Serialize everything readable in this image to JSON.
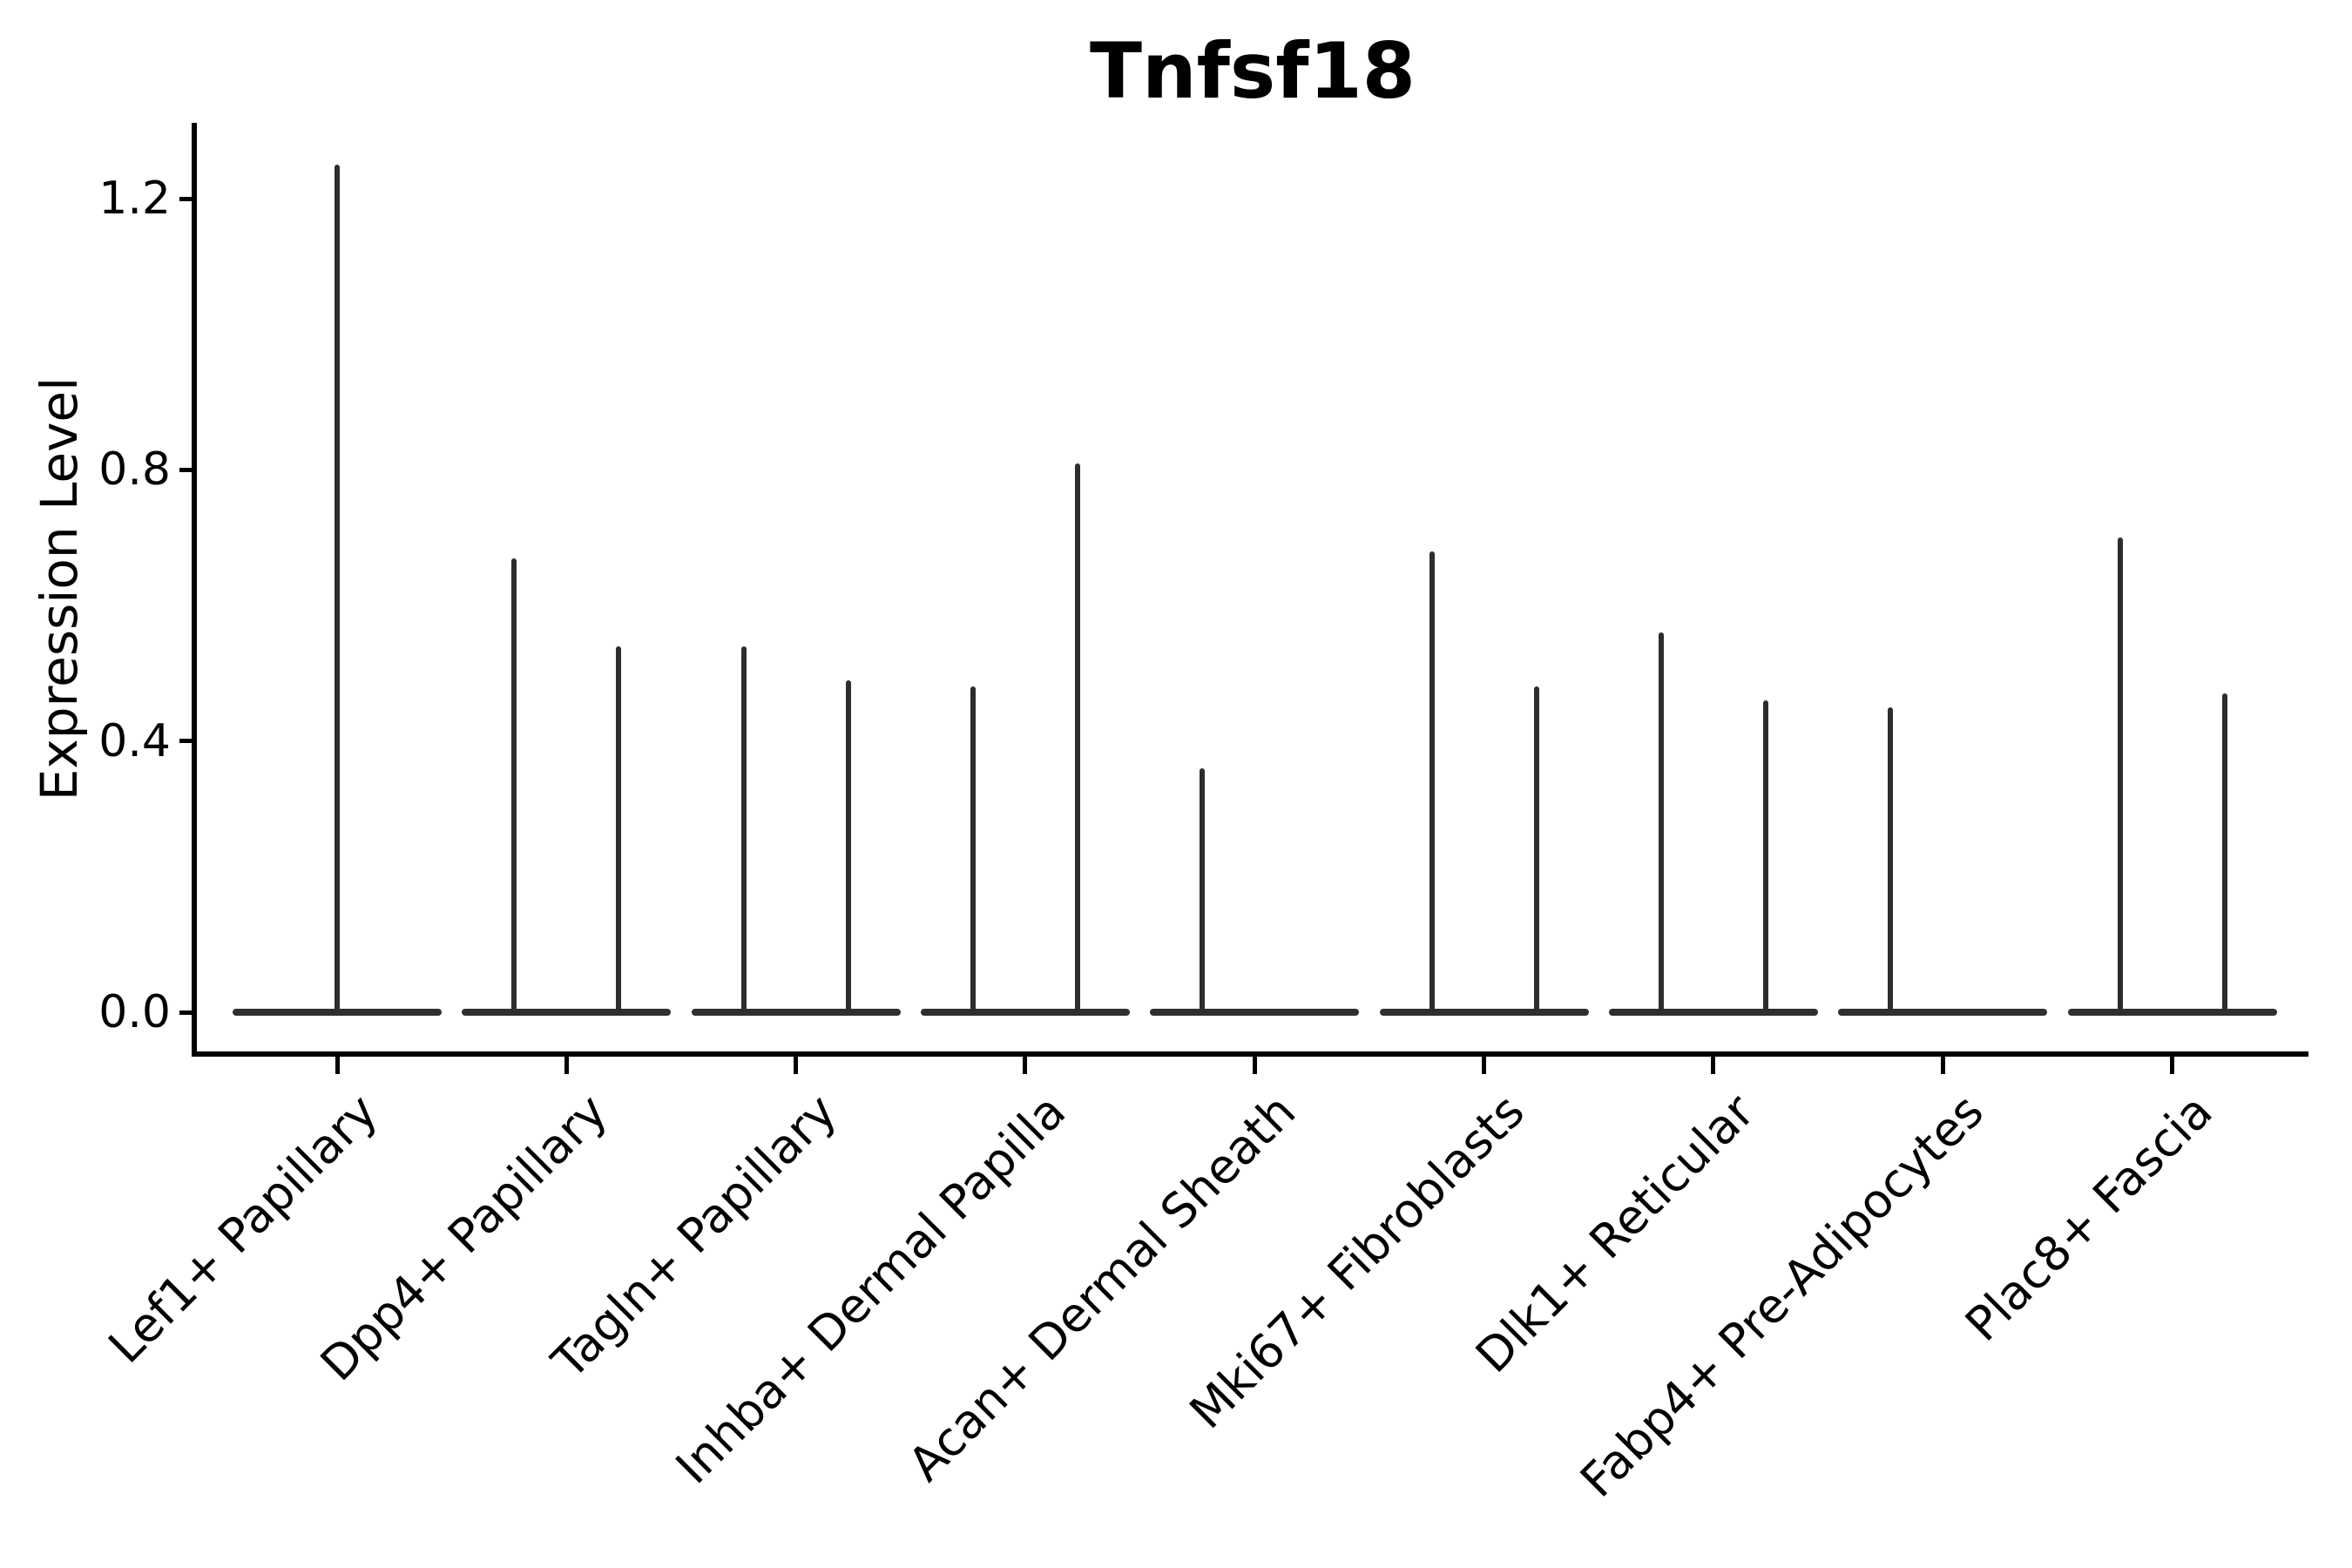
{
  "colors": {
    "background": "#ffffff",
    "violin_outline": "#2d2d2d",
    "axis": "#000000",
    "text": "#000000"
  },
  "chart_data": {
    "type": "violin",
    "title": "Tnfsf18",
    "xlabel": "",
    "ylabel": "Expression Level",
    "ylim": [
      -0.06,
      1.31
    ],
    "grid": false,
    "legend": false,
    "spines": "left and bottom only",
    "x_tick_rotation_deg": 45,
    "yticks": [
      {
        "label": "0.0",
        "value": 0.0
      },
      {
        "label": "0.4",
        "value": 0.4
      },
      {
        "label": "0.8",
        "value": 0.8
      },
      {
        "label": "1.2",
        "value": 1.2
      }
    ],
    "description": "Violin plot of Tnfsf18 expression per fibroblast cluster. Density mass is concentrated at 0 (wide flat base line at y=0); rare expressing cells create a thin vertical spike up to the max expression. Most categories contain two half-width violins (split groups) side by side; Lef1+ Papillary has a single full-width violin; Acan+ Dermal Sheath and Fabp4+ Pre-Adipocytes show a spike only in the left half-violin.",
    "categories": [
      {
        "label": "Lef1+ Papillary",
        "spikes": [
          {
            "pos": "center",
            "max": 1.25
          }
        ]
      },
      {
        "label": "Dpp4+ Papillary",
        "spikes": [
          {
            "pos": "left",
            "max": 0.67
          },
          {
            "pos": "right",
            "max": 0.54
          }
        ]
      },
      {
        "label": "Tagln+ Papillary",
        "spikes": [
          {
            "pos": "left",
            "max": 0.54
          },
          {
            "pos": "right",
            "max": 0.49
          }
        ]
      },
      {
        "label": "Inhba+ Dermal Papilla",
        "spikes": [
          {
            "pos": "left",
            "max": 0.48
          },
          {
            "pos": "right",
            "max": 0.81
          }
        ]
      },
      {
        "label": "Acan+ Dermal Sheath",
        "spikes": [
          {
            "pos": "left",
            "max": 0.36
          }
        ]
      },
      {
        "label": "Mki67+ Fibroblasts",
        "spikes": [
          {
            "pos": "left",
            "max": 0.68
          },
          {
            "pos": "right",
            "max": 0.48
          }
        ]
      },
      {
        "label": "Dlk1+ Reticular",
        "spikes": [
          {
            "pos": "left",
            "max": 0.56
          },
          {
            "pos": "right",
            "max": 0.46
          }
        ]
      },
      {
        "label": "Fabp4+ Pre-Adipocytes",
        "spikes": [
          {
            "pos": "left",
            "max": 0.45
          }
        ]
      },
      {
        "label": "Plac8+ Fascia",
        "spikes": [
          {
            "pos": "left",
            "max": 0.7
          },
          {
            "pos": "right",
            "max": 0.47
          }
        ]
      }
    ]
  }
}
